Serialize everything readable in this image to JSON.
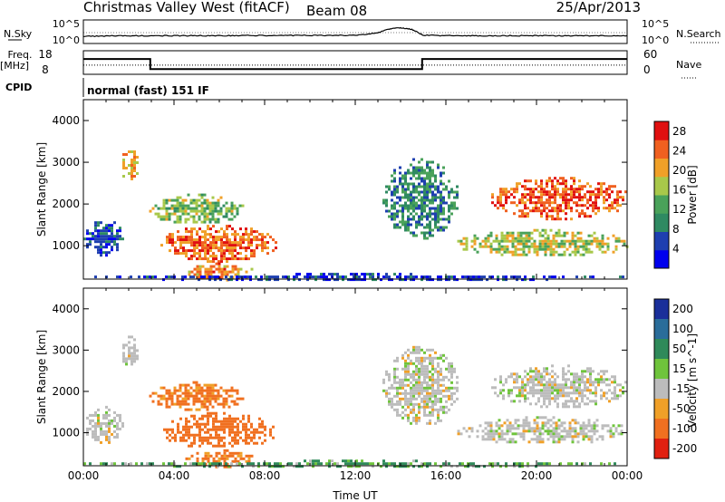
{
  "header": {
    "radar_name": "Christmas Valley West (fitACF)",
    "beam": "Beam 08",
    "date": "25/Apr/2013"
  },
  "top_panels": {
    "nsky_label": "N.Sky",
    "nsearch_label": "N.Search",
    "noise_ticks": [
      "10^5",
      "10^0"
    ],
    "freq_label": "Freq.",
    "freq_unit": "[MHz]",
    "freq_ticks": [
      "18",
      "8"
    ],
    "nave_label": "Nave",
    "nave_ticks": [
      "60",
      "0"
    ],
    "cpid_label": "CPID",
    "cpid_text": "normal (fast) 151 IF"
  },
  "chart_data": [
    {
      "type": "line",
      "name": "noise-panel",
      "series": [
        {
          "name": "N.Sky",
          "x": [
            0,
            1,
            2,
            3,
            4,
            5,
            6,
            7,
            8,
            9,
            10,
            11,
            12,
            13,
            13.5,
            14,
            14.5,
            15,
            16,
            17,
            18,
            19,
            20,
            21,
            22,
            23,
            24
          ],
          "y": [
            0.3,
            0.32,
            0.33,
            0.33,
            0.33,
            0.33,
            0.33,
            0.34,
            0.34,
            0.34,
            0.34,
            0.34,
            0.35,
            0.45,
            0.62,
            0.66,
            0.6,
            0.35,
            0.33,
            0.33,
            0.33,
            0.33,
            0.33,
            0.33,
            0.33,
            0.33,
            0.33
          ]
        }
      ],
      "xlim": [
        0,
        24
      ]
    },
    {
      "type": "line",
      "name": "frequency-panel",
      "series": [
        {
          "name": "Freq",
          "x": [
            0,
            2.95,
            2.95,
            14.95,
            14.95,
            24
          ],
          "y": [
            14.5,
            14.5,
            10.2,
            10.2,
            14.5,
            14.5
          ]
        },
        {
          "name": "Nave",
          "x": [
            0,
            24
          ],
          "y": [
            11.9,
            11.9
          ]
        }
      ],
      "ylim": [
        8,
        18
      ],
      "xlim": [
        0,
        24
      ]
    },
    {
      "type": "heatmap",
      "name": "power",
      "ylabel": "Slant Range [km]",
      "yticks": [
        1000,
        2000,
        3000,
        4000
      ],
      "ylim": [
        200,
        4500
      ],
      "xlim": [
        0,
        24
      ],
      "colorbar": {
        "label": "Power [dB]",
        "ticks": [
          "28",
          "24",
          "20",
          "16",
          "12",
          "8",
          "4"
        ],
        "range": [
          0,
          30
        ]
      },
      "regions": [
        {
          "t0": 0.0,
          "t1": 1.7,
          "r0": 750,
          "r1": 1650,
          "v": 6
        },
        {
          "t0": 1.6,
          "t1": 2.4,
          "r0": 2600,
          "r1": 3350,
          "v": 20
        },
        {
          "t0": 2.9,
          "t1": 7.0,
          "r0": 1550,
          "r1": 2250,
          "v": 15
        },
        {
          "t0": 3.4,
          "t1": 8.5,
          "r0": 650,
          "r1": 1500,
          "v": 24
        },
        {
          "t0": 4.5,
          "t1": 7.5,
          "r0": 200,
          "r1": 600,
          "v": 22
        },
        {
          "t0": 13.2,
          "t1": 16.5,
          "r0": 1200,
          "r1": 3100,
          "v": 10
        },
        {
          "t0": 16.5,
          "t1": 24.0,
          "r0": 750,
          "r1": 1400,
          "v": 17
        },
        {
          "t0": 18.0,
          "t1": 24.0,
          "r0": 1650,
          "r1": 2650,
          "v": 25
        },
        {
          "t0": 0.0,
          "t1": 24.0,
          "r0": 200,
          "r1": 350,
          "v": 4
        }
      ]
    },
    {
      "type": "heatmap",
      "name": "velocity",
      "ylabel": "Slant Range [km]",
      "yticks": [
        1000,
        2000,
        3000,
        4000
      ],
      "ylim": [
        200,
        4500
      ],
      "xlim": [
        0,
        24
      ],
      "xlabel": "Time UT",
      "xticks": [
        "00:00",
        "04:00",
        "08:00",
        "12:00",
        "16:00",
        "20:00",
        "00:00"
      ],
      "colorbar": {
        "label": "Velocity [m s^-1]",
        "ticks": [
          "200",
          "100",
          "50",
          "15",
          "-15",
          "-50",
          "-100",
          "-200"
        ],
        "range": [
          -250,
          250
        ]
      },
      "regions": [
        {
          "t0": 0.0,
          "t1": 1.7,
          "r0": 750,
          "r1": 1650,
          "v": 0
        },
        {
          "t0": 1.6,
          "t1": 2.4,
          "r0": 2600,
          "r1": 3350,
          "v": 0
        },
        {
          "t0": 2.9,
          "t1": 7.0,
          "r0": 1550,
          "r1": 2250,
          "v": -60
        },
        {
          "t0": 3.4,
          "t1": 8.5,
          "r0": 650,
          "r1": 1500,
          "v": -70
        },
        {
          "t0": 4.5,
          "t1": 7.5,
          "r0": 200,
          "r1": 600,
          "v": -60
        },
        {
          "t0": 13.2,
          "t1": 16.5,
          "r0": 1200,
          "r1": 3100,
          "v": 0
        },
        {
          "t0": 16.5,
          "t1": 24.0,
          "r0": 750,
          "r1": 1400,
          "v": 0
        },
        {
          "t0": 18.0,
          "t1": 24.0,
          "r0": 1650,
          "r1": 2650,
          "v": 0
        },
        {
          "t0": 0.0,
          "t1": 24.0,
          "r0": 200,
          "r1": 350,
          "v": 30
        }
      ]
    }
  ]
}
